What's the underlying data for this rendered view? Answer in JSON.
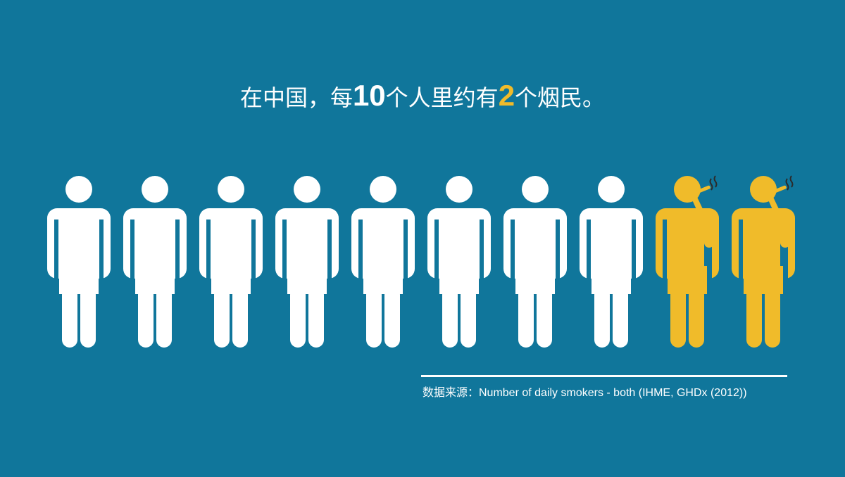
{
  "headline": {
    "before_10": "在中国，每",
    "number_10": "10",
    "between": "个人里约有",
    "number_2": "2",
    "after_2": "个烟民。"
  },
  "source": {
    "text": "数据来源：Number of daily smokers - both (IHME, GHDx (2012))"
  },
  "pictogram": {
    "total": 10,
    "smokers": 2
  },
  "colors": {
    "background": "#10769b",
    "non_smoker": "#ffffff",
    "smoker": "#f0bb2a",
    "smoke": "#2b2b2b"
  },
  "icons": {
    "non_smoker": "person-icon",
    "smoker": "smoking-person-icon"
  }
}
